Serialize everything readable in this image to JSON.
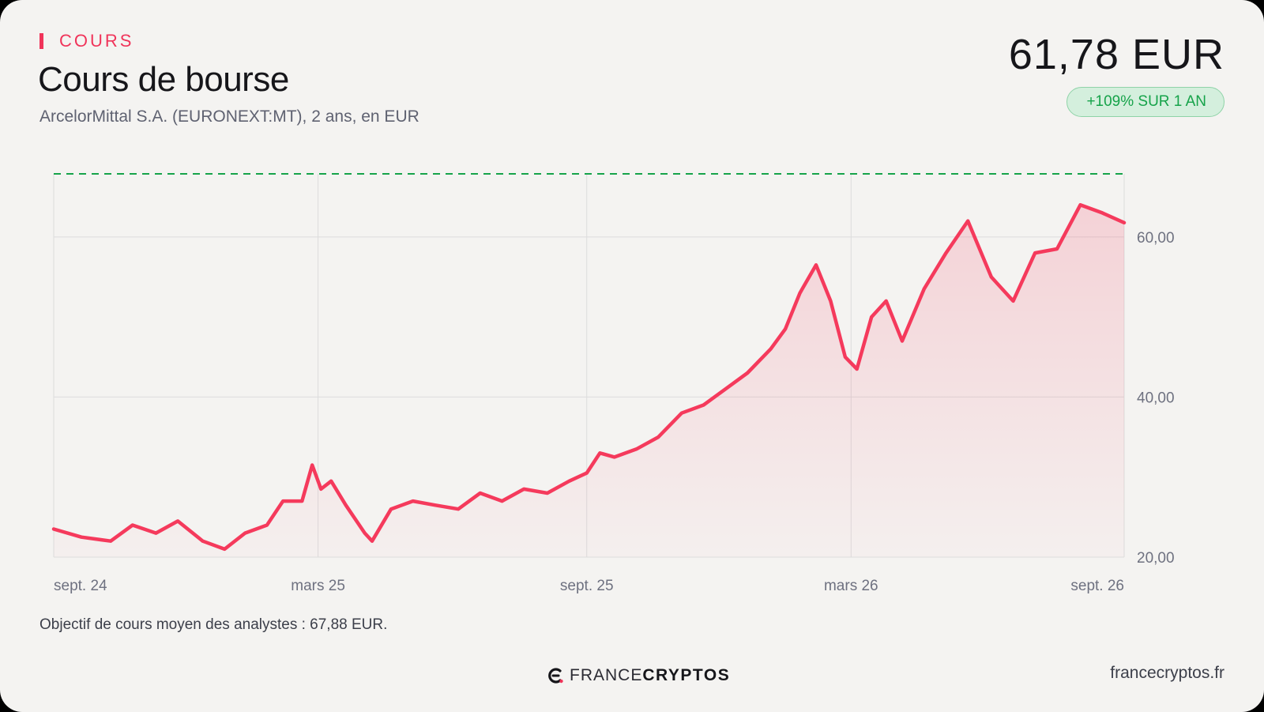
{
  "header": {
    "section_label": "COURS",
    "title": "Cours de bourse",
    "subtitle": "ArcelorMittal S.A. (EURONEXT:MT), 2 ans, en EUR",
    "price": "61,78 EUR",
    "change_badge": "+109% SUR 1 AN"
  },
  "footer": {
    "note": "Objectif de cours moyen des analystes : 67,88 EUR.",
    "brand_light": "FRANCE",
    "brand_bold": "CRYPTOS",
    "site": "francecryptos.fr"
  },
  "colors": {
    "accent": "#f0345a",
    "line": "#f53a5c",
    "target_line": "#16a34a",
    "badge_bg": "#d4efdd",
    "badge_text": "#16a34a",
    "background": "#f4f3f1"
  },
  "chart_data": {
    "type": "line",
    "x_ticks": [
      "sept. 24",
      "mars 25",
      "sept. 25",
      "mars 26",
      "sept. 26"
    ],
    "x_tick_dates": [
      "2024-09-01",
      "2025-03-01",
      "2025-09-01",
      "2026-03-01",
      "2026-09-01"
    ],
    "y_ticks": [
      20,
      40,
      60
    ],
    "y_tick_labels": [
      "20,00",
      "40,00",
      "60,00"
    ],
    "ylim": [
      20,
      67.88
    ],
    "xlim": [
      "2024-09-01",
      "2026-09-04"
    ],
    "grid": true,
    "y_axis_position": "right",
    "target_price": 67.88,
    "series": [
      {
        "x": [
          "2024-09-01",
          "2024-09-20",
          "2024-10-10",
          "2024-10-25",
          "2024-11-10",
          "2024-11-25",
          "2024-12-12",
          "2024-12-27",
          "2025-01-10",
          "2025-01-25",
          "2025-02-05",
          "2025-02-18",
          "2025-02-25",
          "2025-03-03",
          "2025-03-10",
          "2025-03-20",
          "2025-04-02",
          "2025-04-07",
          "2025-04-20",
          "2025-05-05",
          "2025-05-20",
          "2025-06-05",
          "2025-06-20",
          "2025-07-05",
          "2025-07-20",
          "2025-08-05",
          "2025-08-20",
          "2025-09-01",
          "2025-09-10",
          "2025-09-20",
          "2025-10-05",
          "2025-10-20",
          "2025-11-05",
          "2025-11-20",
          "2025-12-05",
          "2025-12-20",
          "2026-01-05",
          "2026-01-15",
          "2026-01-25",
          "2026-02-05",
          "2026-02-15",
          "2026-02-25",
          "2026-03-05",
          "2026-03-15",
          "2026-03-25",
          "2026-04-05",
          "2026-04-20",
          "2026-05-05",
          "2026-05-20",
          "2026-06-05",
          "2026-06-20",
          "2026-07-05",
          "2026-07-20",
          "2026-08-05",
          "2026-08-20",
          "2026-09-04"
        ],
        "y": [
          23.5,
          22.5,
          22.0,
          24.0,
          23.0,
          24.5,
          22.0,
          21.0,
          23.0,
          24.0,
          27.0,
          27.0,
          31.5,
          28.5,
          29.5,
          26.5,
          23.0,
          22.0,
          26.0,
          27.0,
          26.5,
          26.0,
          28.0,
          27.0,
          28.5,
          28.0,
          29.5,
          30.5,
          33.0,
          32.5,
          33.5,
          35.0,
          38.0,
          39.0,
          41.0,
          43.0,
          46.0,
          48.5,
          53.0,
          56.5,
          52.0,
          45.0,
          43.5,
          50.0,
          52.0,
          47.0,
          53.5,
          58.0,
          62.0,
          55.0,
          52.0,
          58.0,
          58.5,
          64.0,
          63.0,
          61.78
        ]
      }
    ]
  }
}
